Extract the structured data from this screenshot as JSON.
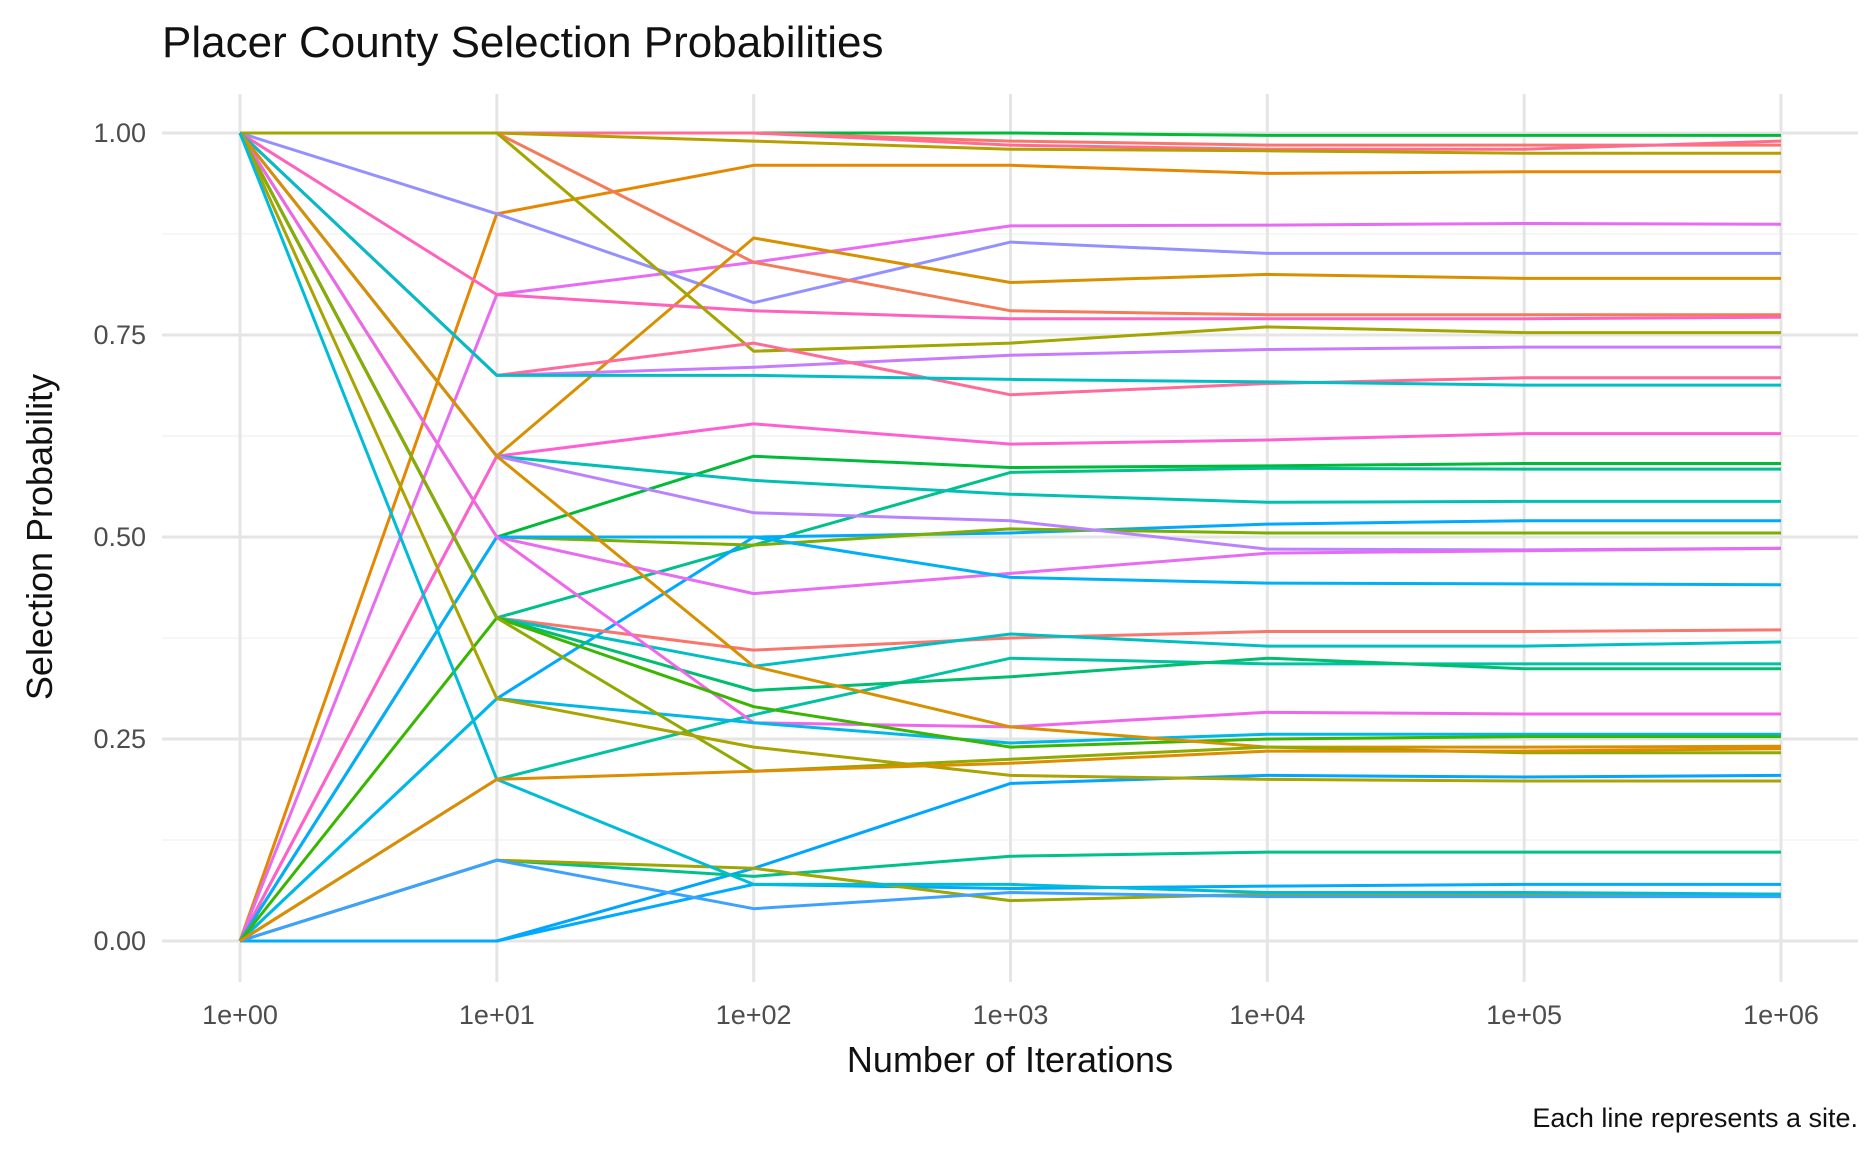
{
  "chart_data": {
    "type": "line",
    "title": "Placer County Selection Probabilities",
    "xlabel": "Number of Iterations",
    "ylabel": "Selection Probability",
    "caption": "Each line represents a site.",
    "x": [
      1,
      10,
      100,
      1000,
      10000,
      100000,
      1000000
    ],
    "x_scale": "log10",
    "xticklabels": [
      "1e+00",
      "1e+01",
      "1e+02",
      "1e+03",
      "1e+04",
      "1e+05",
      "1e+06"
    ],
    "yticks": [
      0,
      0.25,
      0.5,
      0.75,
      1
    ],
    "yticklabels": [
      "0.00",
      "0.25",
      "0.50",
      "0.75",
      "1.00"
    ],
    "ylim": [
      -0.04,
      1.04
    ],
    "grid": true,
    "legend": "none",
    "series": [
      {
        "color": "#00BA38",
        "values": [
          1,
          1,
          1,
          1,
          0.997,
          0.997,
          0.997
        ]
      },
      {
        "color": "#F8766D",
        "values": [
          1,
          1,
          1,
          0.99,
          0.985,
          0.985,
          0.985
        ]
      },
      {
        "color": "#FF6C91",
        "values": [
          1,
          1,
          1,
          0.985,
          0.98,
          0.98,
          0.99
        ]
      },
      {
        "color": "#B79F00",
        "values": [
          1,
          1,
          0.99,
          0.98,
          0.978,
          0.975,
          0.975
        ]
      },
      {
        "color": "#E58700",
        "values": [
          0,
          0.9,
          0.96,
          0.96,
          0.95,
          0.952,
          0.952
        ]
      },
      {
        "color": "#E76BF3",
        "values": [
          0,
          0.8,
          0.84,
          0.885,
          0.886,
          0.888,
          0.887
        ]
      },
      {
        "color": "#9590FF",
        "values": [
          1,
          0.9,
          0.79,
          0.865,
          0.851,
          0.851,
          0.851
        ]
      },
      {
        "color": "#D89000",
        "values": [
          0,
          0.6,
          0.87,
          0.815,
          0.825,
          0.82,
          0.82
        ]
      },
      {
        "color": "#F37B59",
        "values": [
          1,
          1,
          0.84,
          0.78,
          0.775,
          0.775,
          0.775
        ]
      },
      {
        "color": "#FF62BC",
        "values": [
          1,
          0.8,
          0.78,
          0.77,
          0.77,
          0.77,
          0.772
        ]
      },
      {
        "color": "#A3A500",
        "values": [
          1,
          1,
          0.73,
          0.74,
          0.76,
          0.753,
          0.753
        ]
      },
      {
        "color": "#C77CFF",
        "values": [
          1,
          0.7,
          0.71,
          0.725,
          0.732,
          0.735,
          0.735
        ]
      },
      {
        "color": "#FF6A98",
        "values": [
          1,
          0.7,
          0.74,
          0.676,
          0.69,
          0.697,
          0.697
        ]
      },
      {
        "color": "#00BFC4",
        "values": [
          1,
          0.7,
          0.7,
          0.695,
          0.692,
          0.688,
          0.688
        ]
      },
      {
        "color": "#FD61D1",
        "values": [
          0,
          0.6,
          0.64,
          0.615,
          0.62,
          0.628,
          0.628
        ]
      },
      {
        "color": "#00BA38",
        "values": [
          0,
          0.5,
          0.6,
          0.586,
          0.588,
          0.591,
          0.591
        ]
      },
      {
        "color": "#00C08B",
        "values": [
          1,
          0.4,
          0.49,
          0.58,
          0.585,
          0.584,
          0.584
        ]
      },
      {
        "color": "#00BFB3",
        "values": [
          1,
          0.6,
          0.57,
          0.553,
          0.543,
          0.544,
          0.544
        ]
      },
      {
        "color": "#00A9FF",
        "values": [
          0,
          0.3,
          0.5,
          0.505,
          0.516,
          0.52,
          0.52
        ]
      },
      {
        "color": "#7CAE00",
        "values": [
          1,
          0.5,
          0.49,
          0.51,
          0.505,
          0.505,
          0.505
        ]
      },
      {
        "color": "#B983FF",
        "values": [
          1,
          0.6,
          0.53,
          0.52,
          0.485,
          0.484,
          0.486
        ]
      },
      {
        "color": "#E76BF3",
        "values": [
          0,
          0.5,
          0.43,
          0.455,
          0.48,
          0.483,
          0.486
        ]
      },
      {
        "color": "#00B0F6",
        "values": [
          0,
          0.5,
          0.5,
          0.45,
          0.443,
          0.442,
          0.441
        ]
      },
      {
        "color": "#F8766D",
        "values": [
          1,
          0.4,
          0.36,
          0.375,
          0.383,
          0.383,
          0.385
        ]
      },
      {
        "color": "#00BFC4",
        "values": [
          1,
          0.4,
          0.34,
          0.38,
          0.365,
          0.365,
          0.37
        ]
      },
      {
        "color": "#00C1A3",
        "values": [
          0,
          0.2,
          0.28,
          0.35,
          0.343,
          0.343,
          0.343
        ]
      },
      {
        "color": "#00BE70",
        "values": [
          1,
          0.4,
          0.31,
          0.327,
          0.35,
          0.337,
          0.337
        ]
      },
      {
        "color": "#F066EA",
        "values": [
          1,
          0.5,
          0.27,
          0.265,
          0.283,
          0.281,
          0.281
        ]
      },
      {
        "color": "#00B8E7",
        "values": [
          0,
          0.3,
          0.27,
          0.245,
          0.256,
          0.256,
          0.256
        ]
      },
      {
        "color": "#39B600",
        "values": [
          0,
          0.4,
          0.29,
          0.24,
          0.25,
          0.253,
          0.253
        ]
      },
      {
        "color": "#D89000",
        "values": [
          1,
          0.6,
          0.34,
          0.265,
          0.24,
          0.24,
          0.241
        ]
      },
      {
        "color": "#8FAA00",
        "values": [
          1,
          0.4,
          0.21,
          0.225,
          0.24,
          0.233,
          0.233
        ]
      },
      {
        "color": "#00A5FF",
        "values": [
          0,
          0,
          0.09,
          0.195,
          0.205,
          0.203,
          0.205
        ]
      },
      {
        "color": "#ABA300",
        "values": [
          1,
          0.3,
          0.24,
          0.205,
          0.2,
          0.198,
          0.198
        ]
      },
      {
        "color": "#00C08B",
        "values": [
          0,
          0.1,
          0.08,
          0.105,
          0.11,
          0.11,
          0.11
        ]
      },
      {
        "color": "#00ABFD",
        "values": [
          0,
          0,
          0.07,
          0.065,
          0.068,
          0.07,
          0.07
        ]
      },
      {
        "color": "#9DA700",
        "values": [
          0,
          0.1,
          0.09,
          0.05,
          0.058,
          0.058,
          0.058
        ]
      },
      {
        "color": "#3DA1FF",
        "values": [
          0,
          0.1,
          0.04,
          0.06,
          0.055,
          0.055,
          0.055
        ]
      },
      {
        "color": "#00BCD8",
        "values": [
          1,
          0.2,
          0.07,
          0.07,
          0.06,
          0.06,
          0.058
        ]
      },
      {
        "color": "#DE8C00",
        "values": [
          0,
          0.2,
          0.21,
          0.22,
          0.235,
          0.235,
          0.238
        ]
      }
    ]
  }
}
